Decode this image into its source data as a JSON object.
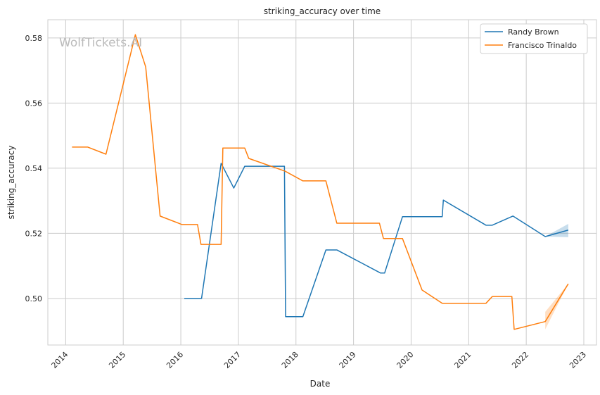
{
  "chart_data": {
    "type": "line",
    "title": "striking_accuracy over time",
    "xlabel": "Date",
    "ylabel": "striking_accuracy",
    "watermark": "WolfTickets.AI",
    "xlim": [
      2013.69,
      2023.22
    ],
    "ylim": [
      0.4857,
      0.5856
    ],
    "xticks": [
      2014,
      2015,
      2016,
      2017,
      2018,
      2019,
      2020,
      2021,
      2022,
      2023
    ],
    "xtick_labels": [
      "2014",
      "2015",
      "2016",
      "2017",
      "2018",
      "2019",
      "2020",
      "2021",
      "2022",
      "2023"
    ],
    "yticks": [
      0.5,
      0.52,
      0.54,
      0.56,
      0.58
    ],
    "ytick_labels": [
      "0.50",
      "0.52",
      "0.54",
      "0.56",
      "0.58"
    ],
    "grid": true,
    "legend_position": "top-right",
    "series": [
      {
        "name": "Randy Brown",
        "color": "#1f77b4",
        "x": [
          2016.06,
          2016.36,
          2016.7,
          2016.92,
          2017.11,
          2017.8,
          2017.82,
          2018.12,
          2018.52,
          2018.71,
          2019.47,
          2019.54,
          2019.85,
          2020.54,
          2020.56,
          2021.3,
          2021.41,
          2021.77,
          2022.33,
          2022.73
        ],
        "y": [
          0.5,
          0.5,
          0.5415,
          0.5339,
          0.5406,
          0.5406,
          0.4944,
          0.4944,
          0.5149,
          0.5149,
          0.5078,
          0.5078,
          0.5251,
          0.5251,
          0.5302,
          0.5225,
          0.5225,
          0.5253,
          0.519,
          0.521
        ],
        "ci": {
          "x": [
            2022.33,
            2022.73
          ],
          "low": [
            0.519,
            0.5188
          ],
          "high": [
            0.519,
            0.5229
          ]
        }
      },
      {
        "name": "Francisco Trinaldo",
        "color": "#ff7f0e",
        "x": [
          2014.11,
          2014.38,
          2014.7,
          2015.21,
          2015.39,
          2015.64,
          2016.02,
          2016.29,
          2016.35,
          2016.7,
          2016.73,
          2017.11,
          2017.18,
          2017.81,
          2018.12,
          2018.52,
          2018.71,
          2019.45,
          2019.52,
          2019.85,
          2020.19,
          2020.54,
          2021.3,
          2021.41,
          2021.75,
          2021.79,
          2022.33,
          2022.73
        ],
        "y": [
          0.5465,
          0.5465,
          0.5443,
          0.581,
          0.5711,
          0.5253,
          0.5227,
          0.5227,
          0.5166,
          0.5166,
          0.5462,
          0.5462,
          0.543,
          0.5391,
          0.5361,
          0.5361,
          0.5231,
          0.5231,
          0.5184,
          0.5184,
          0.5026,
          0.4985,
          0.4985,
          0.5006,
          0.5006,
          0.4905,
          0.4929,
          0.5045
        ],
        "ci": {
          "x": [
            2022.33,
            2022.73
          ],
          "low": [
            0.4905,
            0.5045
          ],
          "high": [
            0.4959,
            0.5045
          ]
        }
      }
    ]
  }
}
